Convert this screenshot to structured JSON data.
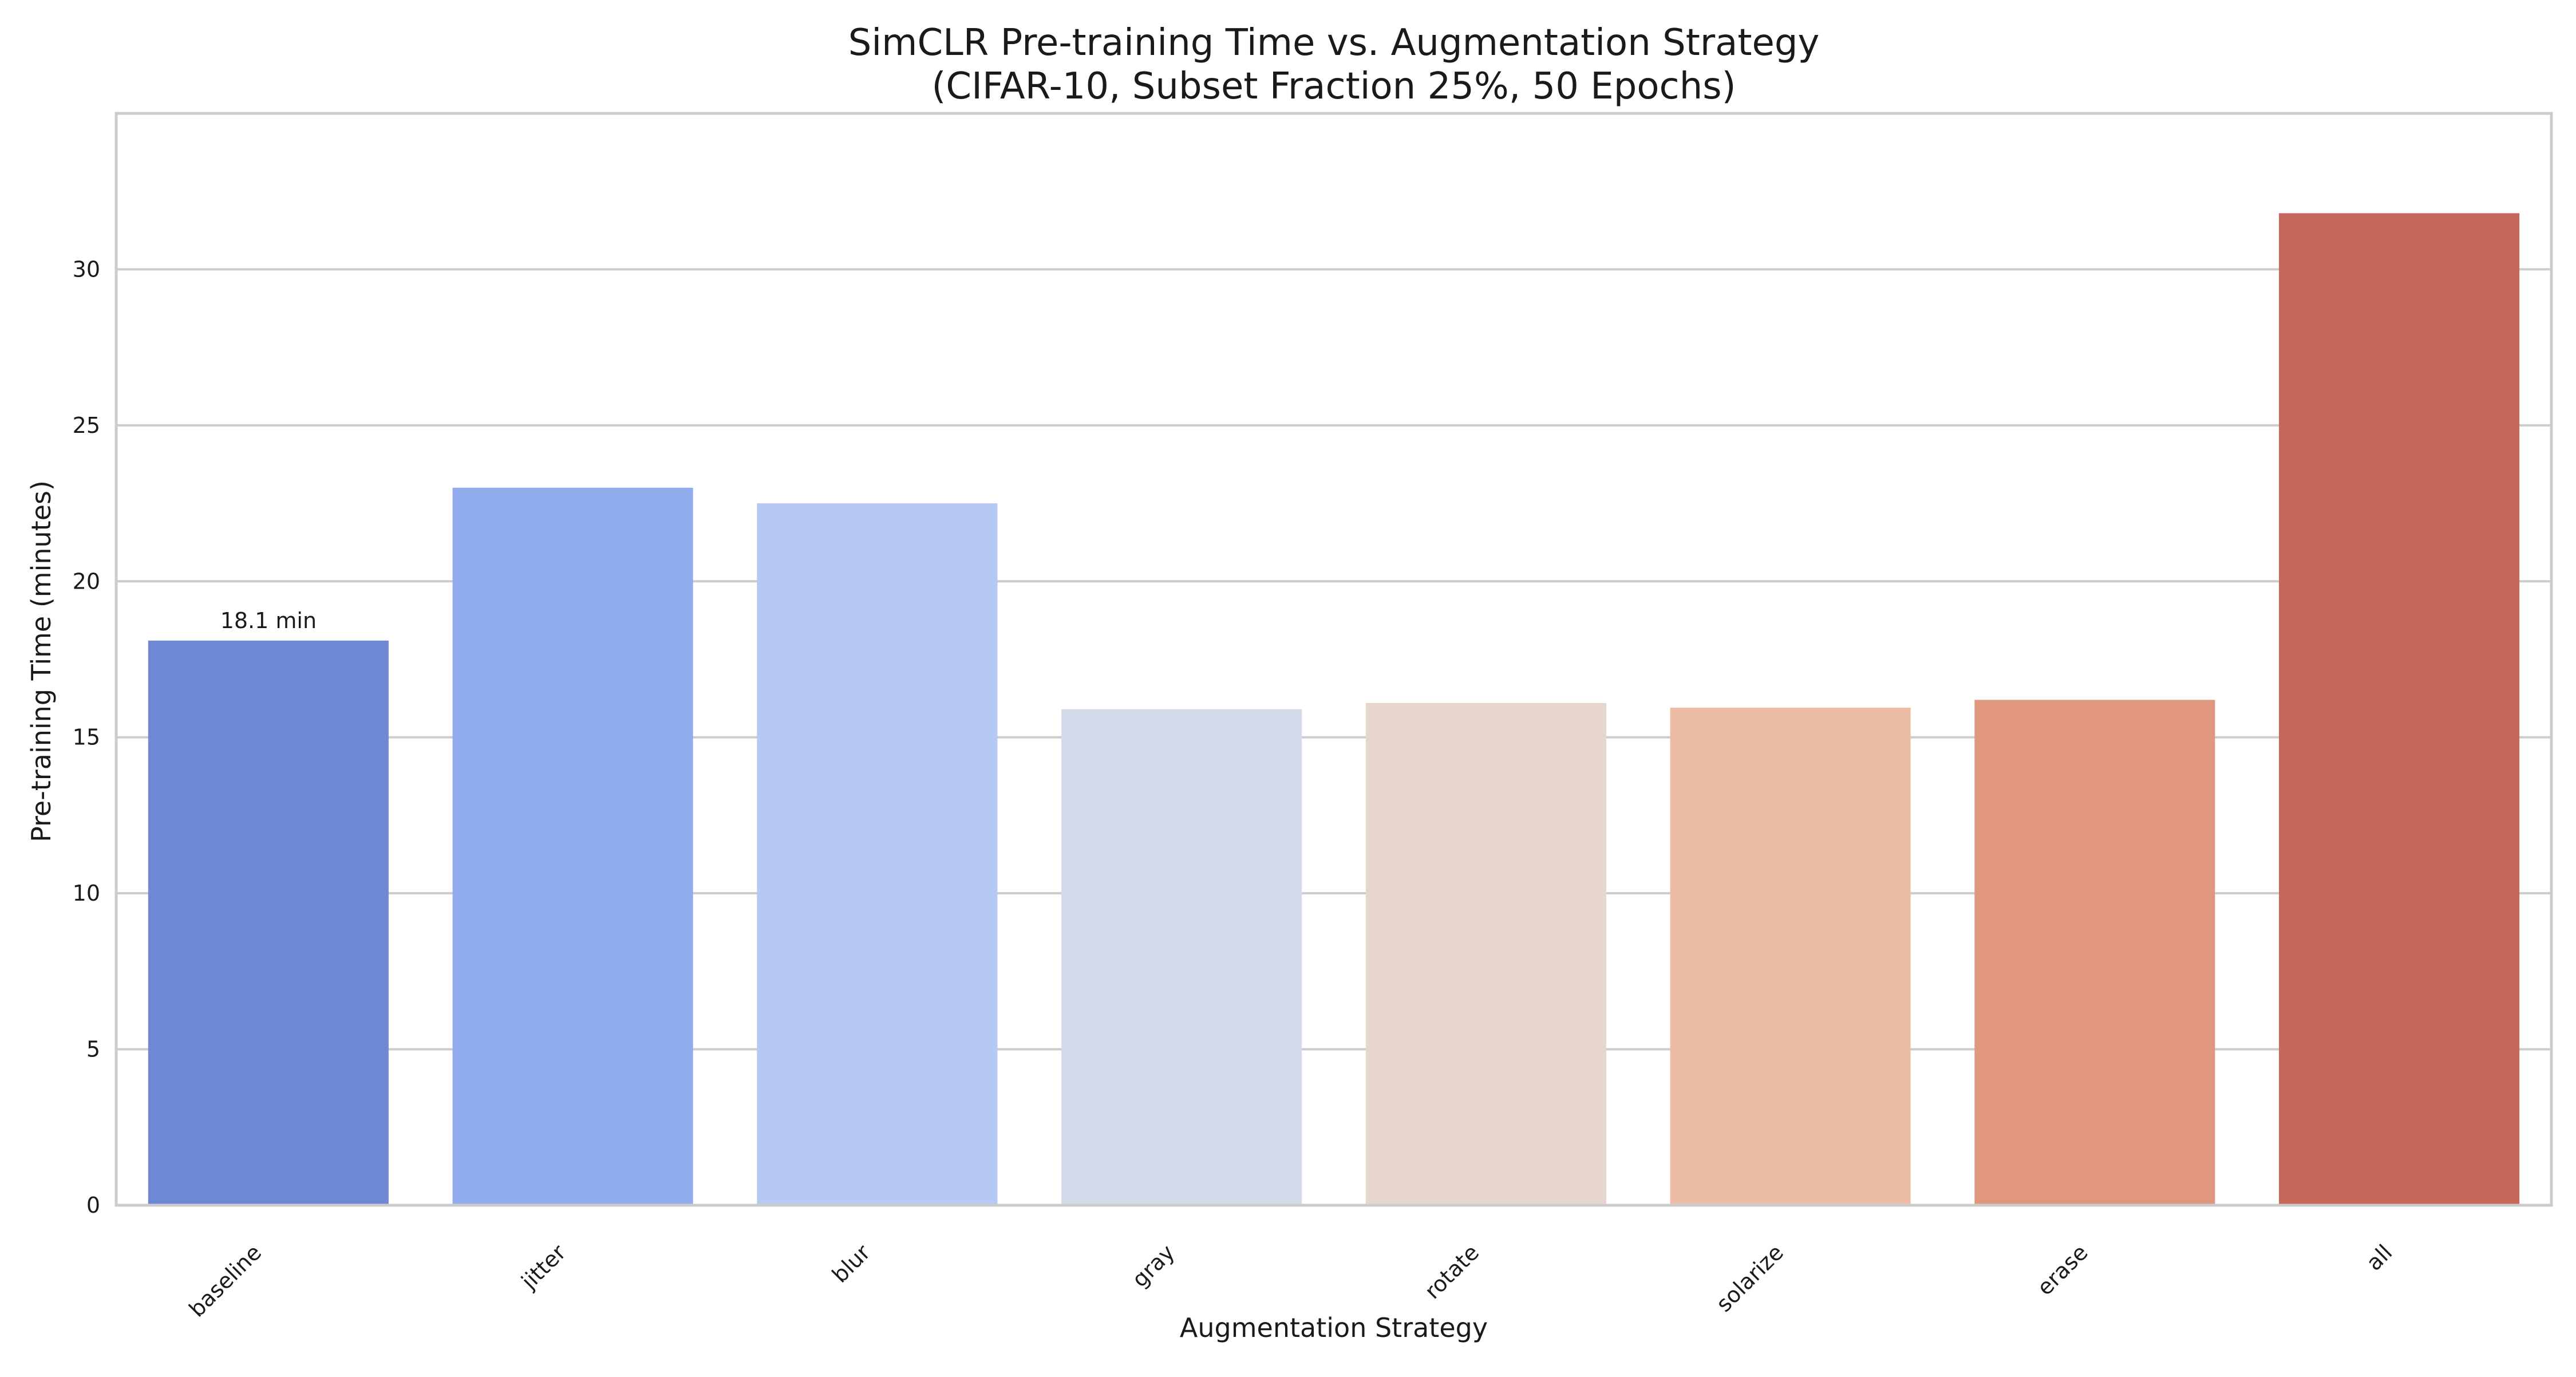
{
  "chart_data": {
    "type": "bar",
    "title": "SimCLR Pre-training Time vs. Augmentation Strategy",
    "subtitle": "(CIFAR-10, Subset Fraction 25%, 50 Epochs)",
    "xlabel": "Augmentation Strategy",
    "ylabel": "Pre-training Time (minutes)",
    "categories": [
      "baseline",
      "jitter",
      "blur",
      "gray",
      "rotate",
      "solarize",
      "erase",
      "all"
    ],
    "values": [
      18.1,
      23.0,
      22.5,
      15.9,
      16.1,
      15.95,
      16.2,
      31.8
    ],
    "colors": [
      "#6f88d6",
      "#91acec",
      "#b5c9f2",
      "#d1dbea",
      "#e6d6cd",
      "#ecbca5",
      "#e0977e",
      "#c6675c"
    ],
    "ylim": [
      0,
      35
    ],
    "yticks": [
      0,
      5,
      10,
      15,
      20,
      25,
      30
    ],
    "grid": true,
    "annotations": [
      {
        "category": "baseline",
        "text": "18.1 min"
      }
    ]
  }
}
